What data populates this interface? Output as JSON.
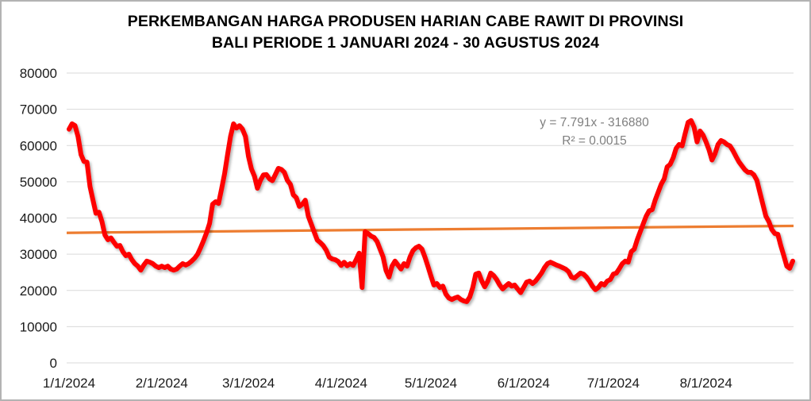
{
  "chart_data": {
    "type": "line",
    "title": "PERKEMBANGAN HARGA PRODUSEN HARIAN CABE RAWIT DI PROVINSI BALI PERIODE 1 JANUARI 2024 - 30 AGUSTUS 2024",
    "title_line1": "PERKEMBANGAN HARGA PRODUSEN HARIAN CABE RAWIT DI PROVINSI",
    "title_line2": "BALI PERIODE 1 JANUARI 2024 - 30 AGUSTUS 2024",
    "xlabel": "",
    "ylabel": "",
    "x_tick_labels": [
      "1/1/2024",
      "2/1/2024",
      "3/1/2024",
      "4/1/2024",
      "5/1/2024",
      "6/1/2024",
      "7/1/2024",
      "8/1/2024"
    ],
    "x_tick_day_offsets": [
      0,
      31,
      60,
      91,
      121,
      152,
      182,
      213
    ],
    "y_ticks": [
      0,
      10000,
      20000,
      30000,
      40000,
      50000,
      60000,
      70000,
      80000
    ],
    "ylim": [
      0,
      80000
    ],
    "grid": "horizontal-only",
    "legend": "none",
    "series": [
      {
        "name": "harga-produsen-harian-cabe-rawit",
        "color": "#fe0100",
        "values": [
          64500,
          66000,
          65500,
          62500,
          57500,
          55600,
          55400,
          48700,
          45000,
          41300,
          41600,
          39000,
          35300,
          34000,
          34500,
          33300,
          32200,
          32400,
          30700,
          29600,
          30000,
          28500,
          27400,
          26700,
          25600,
          27000,
          28100,
          27800,
          27400,
          26700,
          26300,
          26700,
          26300,
          26700,
          25900,
          25600,
          25900,
          26700,
          27400,
          27000,
          27400,
          28100,
          28900,
          30000,
          31800,
          33800,
          36000,
          38500,
          43800,
          44500,
          44000,
          48000,
          52200,
          57400,
          62500,
          66000,
          64800,
          65500,
          64500,
          62500,
          57000,
          53500,
          51500,
          48200,
          50400,
          51900,
          52000,
          50800,
          50300,
          52000,
          53700,
          53400,
          52600,
          50400,
          49300,
          46400,
          45600,
          43200,
          43800,
          44900,
          40500,
          38300,
          36100,
          33900,
          33200,
          32400,
          31100,
          29200,
          28700,
          28500,
          28000,
          26900,
          27800,
          26800,
          27400,
          26900,
          28500,
          30300,
          20800,
          36200,
          35700,
          35000,
          34600,
          33500,
          31400,
          29300,
          25500,
          23700,
          26700,
          28100,
          27000,
          25900,
          27400,
          26700,
          29200,
          31000,
          31800,
          32200,
          31400,
          29200,
          26700,
          24000,
          21500,
          21900,
          20800,
          21200,
          19000,
          17900,
          17500,
          17900,
          18200,
          17500,
          17100,
          16900,
          18200,
          20800,
          24500,
          24800,
          22600,
          21000,
          22500,
          24800,
          24100,
          23000,
          21500,
          20400,
          21200,
          21900,
          21200,
          21500,
          20400,
          19400,
          20800,
          22300,
          22600,
          21900,
          22600,
          23700,
          24800,
          26300,
          27400,
          27800,
          27400,
          27000,
          26700,
          26300,
          25900,
          25200,
          23700,
          23400,
          24100,
          24800,
          24500,
          23700,
          22600,
          21200,
          20200,
          20800,
          21900,
          21500,
          22600,
          23000,
          24500,
          24800,
          26000,
          27400,
          28100,
          27800,
          30700,
          31400,
          34000,
          36200,
          38400,
          40500,
          42000,
          42300,
          44900,
          47100,
          49300,
          50800,
          54100,
          54800,
          56600,
          59200,
          60300,
          59900,
          63200,
          66400,
          66900,
          65100,
          61000,
          64000,
          62900,
          61000,
          58800,
          56000,
          57700,
          60300,
          61400,
          61000,
          60300,
          59900,
          58600,
          57000,
          55500,
          54400,
          53300,
          52600,
          52600,
          51900,
          50400,
          47100,
          43800,
          40500,
          39000,
          36800,
          35700,
          35500,
          32400,
          29600,
          26700,
          26100,
          28100
        ]
      }
    ],
    "trendline": {
      "equation_label": "y = 7.791x - 316880",
      "r2_label": "R² = 0.0015",
      "color": "#ed7d31",
      "label_color": "#7f7f7f",
      "start_value": 35900,
      "end_value": 37800
    },
    "colors": {
      "gridline": "#d9d9d9",
      "axis_text": "#1a1a1a",
      "title_text": "#000000",
      "background": "#ffffff",
      "frame_border": "#b3b3b3"
    }
  }
}
